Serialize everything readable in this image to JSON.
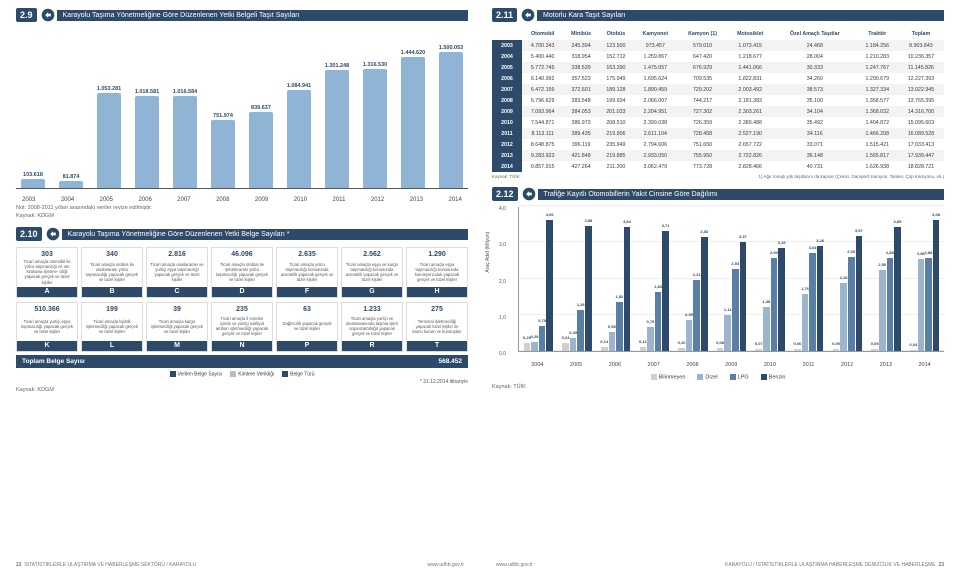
{
  "sec29": {
    "num": "2.9",
    "title": "Karayolu Taşıma Yönetmeliğine Göre Düzenlenen Yetki Belgeli Taşıt Sayıları",
    "years": [
      "2003",
      "2004",
      "2005",
      "2006",
      "2007",
      "2008",
      "2009",
      "2010",
      "2011",
      "2012",
      "2013",
      "2014"
    ],
    "values": [
      103618,
      81874,
      1053281,
      1018581,
      1016584,
      751974,
      839637,
      1084941,
      1301248,
      1316530,
      1444620,
      1500053
    ],
    "labels": [
      "103.618",
      "81.874",
      "1.053.281",
      "1.018.581",
      "1.016.584",
      "751.974",
      "839.637",
      "1.084.941",
      "1.301.248",
      "1.316.530",
      "1.444.620",
      "1.500.053"
    ],
    "bar_color": "#8fb4d6",
    "max": 1600000,
    "note1": "Not: 2008-2011 yılları arasındaki veriler revize edilmiştir.",
    "note2": "Kaynak: KDGM"
  },
  "sec210": {
    "num": "2.10",
    "title": "Karayolu Taşıma Yönetmeliğine Göre Düzenlenen Yetki Belge Sayıları *",
    "row1": [
      {
        "n": "303",
        "d": "Ticari amaçla otomobil ile yolcu taşımacılığı ve oto kiralama işletme- ciliği yapacak gerçek ve tüzel kişiler",
        "l": "A"
      },
      {
        "n": "340",
        "d": "Ticari amaçla otobüs ile uluslararası yolcu taşımacılığı yapacak gerçek ve tüzel kişiler",
        "l": "B"
      },
      {
        "n": "2.816",
        "d": "Ticari amaçla uluslararası ve yurtiçi eşya taşımacılığı yapacak gerçek ve tüzel kişiler",
        "l": "C"
      },
      {
        "n": "46.096",
        "d": "Ticari amaçla otobüs ile şehirlerarası yolcu taşımacılığı yapacak gerçek ve tüzel kişiler",
        "l": "D"
      },
      {
        "n": "2.635",
        "d": "Ticari amaçla yolcu taşımacılığı konusunda acentelik yapacak gerçek ve tüzel kişiler",
        "l": "F"
      },
      {
        "n": "2.562",
        "d": "Ticari amaçla eşya ve kargo taşımacılığı konusunda acentelik yapacak gerçek ve tüzel kişiler",
        "l": "G"
      },
      {
        "n": "1.290",
        "d": "Ticari amaçla eşya taşımacılığı konusunda komisyonculuk yapacak gerçek ve tüzel kişiler",
        "l": "H"
      }
    ],
    "row2": [
      {
        "n": "510.366",
        "d": "Ticari amaçla yurtiçi eşya taşımacılığı yapacak gerçek ve tüzel kişiler",
        "l": "K"
      },
      {
        "n": "199",
        "d": "Ticari amaçla lojistik işletmeciliği yapacak gerçek ve tüzel kişiler",
        "l": "L"
      },
      {
        "n": "39",
        "d": "Ticari amaçla kargo işletmeciliği yapacak gerçek ve tüzel kişiler",
        "l": "M"
      },
      {
        "n": "235",
        "d": "Ticari amaçla il sınırları içinde ve yurtiçi nakliyat ambarı işletmeciliği yapacak gerçek ve tüzel kişiler",
        "l": "N"
      },
      {
        "n": "63",
        "d": "Dağıtıcılık yapacak gerçek ve tüzel kişiler",
        "l": "P"
      },
      {
        "n": "1.233",
        "d": "Ticari amaçla yurtiçi ve uluslararasında taşıma işleri organizatörlüğü yapacak gerçek ve tüzel kişiler",
        "l": "R"
      },
      {
        "n": "275",
        "d": "Terminal işletmeciliği yapacak tüzel kişiler ile kamu kurum ve kuruluşları",
        "l": "T"
      }
    ],
    "total_label": "Toplam Belge Sayısı",
    "total_value": "568.452",
    "legend": [
      "Verilen Belge Sayısı",
      "Kimlere Verildiği",
      "Belge Türü"
    ],
    "legend_colors": [
      "#2d4a6b",
      "#888888",
      "#2d4a6b"
    ],
    "asterisk": "* 31.12.2014 itibariyle",
    "kaynak": "Kaynak: KDGM"
  },
  "sec211": {
    "num": "2.11",
    "title": "Motorlu Kara Taşıt Sayıları",
    "headers": [
      "Otomobil",
      "Minibüs",
      "Otobüs",
      "Kamyonet",
      "Kamyon (1)",
      "Motosiklet",
      "Özel Amaçlı Taşıtlar",
      "Traktör",
      "Toplam"
    ],
    "rows": [
      {
        "y": "2003",
        "c": [
          "4.700.343",
          "245.394",
          "123.500",
          "973.457",
          "579.010",
          "1.073.415",
          "24.468",
          "1.184.256",
          "8.903.843"
        ]
      },
      {
        "y": "2004",
        "c": [
          "5.400.440",
          "318.954",
          "152.712",
          "1.259.867",
          "647.420",
          "1.218.677",
          "28.004",
          "1.210.283",
          "10.236.357"
        ]
      },
      {
        "y": "2005",
        "c": [
          "5.772.745",
          "338.539",
          "163.390",
          "1.475.057",
          "676.929",
          "1.441.066",
          "30.333",
          "1.247.767",
          "11.145.826"
        ]
      },
      {
        "y": "2006",
        "c": [
          "6.140.992",
          "357.523",
          "175.949",
          "1.695.624",
          "709.535",
          "1.822.831",
          "34.260",
          "1.290.679",
          "12.227.393"
        ]
      },
      {
        "y": "2007",
        "c": [
          "6.472.156",
          "372.601",
          "189.128",
          "1.890.459",
          "729.202",
          "2.003.492",
          "38.573",
          "1.327.334",
          "13.022.945"
        ]
      },
      {
        "y": "2008",
        "c": [
          "6.796.629",
          "383.548",
          "199.934",
          "2.066.007",
          "744.217",
          "2.181.383",
          "35.100",
          "1.358.577",
          "13.765.395"
        ]
      },
      {
        "y": "2009",
        "c": [
          "7.093.964",
          "384.053",
          "201.033",
          "2.204.951",
          "727.302",
          "2.303.261",
          "34.104",
          "1.368.032",
          "14.316.700"
        ]
      },
      {
        "y": "2010",
        "c": [
          "7.544.871",
          "386.973",
          "208.510",
          "2.399.038",
          "726.359",
          "2.389.488",
          "35.492",
          "1.404.872",
          "15.095.603"
        ]
      },
      {
        "y": "2011",
        "c": [
          "8.113.111",
          "389.435",
          "219.906",
          "2.611.104",
          "728.458",
          "2.527.190",
          "34.116",
          "1.466.208",
          "16.089.528"
        ]
      },
      {
        "y": "2012",
        "c": [
          "8.648.875",
          "396.119",
          "235.949",
          "2.794.606",
          "751.650",
          "2.657.722",
          "33.071",
          "1.515.421",
          "17.033.413"
        ]
      },
      {
        "y": "2013",
        "c": [
          "9.283.923",
          "421.848",
          "219.885",
          "2.933.050",
          "755.950",
          "2.722.826",
          "36.148",
          "1.565.817",
          "17.939.447"
        ]
      },
      {
        "y": "2014",
        "c": [
          "9.857.915",
          "427.264",
          "211.200",
          "3.062.479",
          "773.728",
          "2.828.466",
          "40.731",
          "1.626.938",
          "18.828.721"
        ]
      }
    ],
    "kaynak": "Kaynak: TÜİK",
    "footnote": "1)    Ağır tonajlı yük taşıtlarını da kapsar (Çekici, Damperli Kamyon, Tanker, Çöp Kamyonu, vb.)"
  },
  "sec212": {
    "num": "2.12",
    "title": "Trafiğe Kayıtlı Otomobillerin Yakıt Cinsine Göre Dağılımı",
    "ylabel": "Araç Adet (Milyon)",
    "ylim": [
      0,
      4.5
    ],
    "yticks": [
      "0,0",
      "1,0",
      "2,0",
      "3,0",
      "4,0"
    ],
    "years": [
      "2004",
      "2005",
      "2006",
      "2007",
      "2008",
      "2009",
      "2010",
      "2011",
      "2012",
      "2013",
      "2014"
    ],
    "colors": {
      "bilinmeyen": "#cfcfcf",
      "dizel": "#9bb5cf",
      "lpg": "#5a7fa6",
      "benzin": "#2d4a6b"
    },
    "series": [
      {
        "bilinmeyen": 0.25,
        "dizel": 0.29,
        "lpg": 0.79,
        "benzin": 4.06,
        "lb": "0,25",
        "ld": "0,29",
        "ll": "0,79",
        "lbz": "4,06"
      },
      {
        "bilinmeyen": 0.24,
        "dizel": 0.39,
        "lpg": 1.26,
        "benzin": 3.88,
        "lb": "0,24",
        "ld": "0,39",
        "ll": "1,26",
        "lbz": "3,88"
      },
      {
        "bilinmeyen": 0.14,
        "dizel": 0.58,
        "lpg": 1.52,
        "benzin": 3.84,
        "lb": "0,14",
        "ld": "0,58",
        "ll": "1,52",
        "lbz": "3,84"
      },
      {
        "bilinmeyen": 0.11,
        "dizel": 0.76,
        "lpg": 1.83,
        "benzin": 3.71,
        "lb": "0,11",
        "ld": "0,76",
        "ll": "1,83",
        "lbz": "3,71"
      },
      {
        "bilinmeyen": 0.1,
        "dizel": 0.95,
        "lpg": 2.21,
        "benzin": 3.53,
        "lb": "0,10",
        "ld": "0,95",
        "ll": "2,21",
        "lbz": "3,53"
      },
      {
        "bilinmeyen": 0.08,
        "dizel": 1.11,
        "lpg": 2.53,
        "benzin": 3.37,
        "lb": "0,08",
        "ld": "1,11",
        "ll": "2,53",
        "lbz": "3,37"
      },
      {
        "bilinmeyen": 0.07,
        "dizel": 1.38,
        "lpg": 2.9,
        "benzin": 3.19,
        "lb": "0,07",
        "ld": "1,38",
        "ll": "2,90",
        "lbz": "3,19"
      },
      {
        "bilinmeyen": 0.06,
        "dizel": 1.76,
        "lpg": 3.04,
        "benzin": 3.26,
        "lb": "0,06",
        "ld": "1,76",
        "ll": "3,04",
        "lbz": "3,26"
      },
      {
        "bilinmeyen": 0.05,
        "dizel": 2.1,
        "lpg": 2.93,
        "benzin": 3.57,
        "lb": "0,05",
        "ld": "2,10",
        "ll": "2,93",
        "lbz": "3,57"
      },
      {
        "bilinmeyen": 0.05,
        "dizel": 2.5,
        "lpg": 2.88,
        "benzin": 3.85,
        "lb": "0,05",
        "ld": "2,50",
        "ll": "2,88",
        "lbz": "3,85"
      },
      {
        "bilinmeyen": 0.04,
        "dizel": 2.86,
        "lpg": 2.88,
        "benzin": 4.08,
        "lb": "0,04",
        "ld": "2,86",
        "ll": "2,88",
        "lbz": "4,08"
      }
    ],
    "legend": [
      "Bilinmeyen",
      "Dizel",
      "LPG",
      "Benzin"
    ],
    "kaynak": "Kaynak: TÜİK"
  },
  "footer": {
    "left_page": "22",
    "left_text": "İSTATİSTİKLERLE ULAŞTIRMA VE HABERLEŞME SEKTÖRÜ / KARAYOLU",
    "url": "www.udhb.gov.tr",
    "right_text": "KARAYOLU / İSTATİSTİKLERLE ULAŞTIRMA HABERLEŞME DENİZCİLİK VE HABERLEŞME",
    "right_page": "23"
  }
}
